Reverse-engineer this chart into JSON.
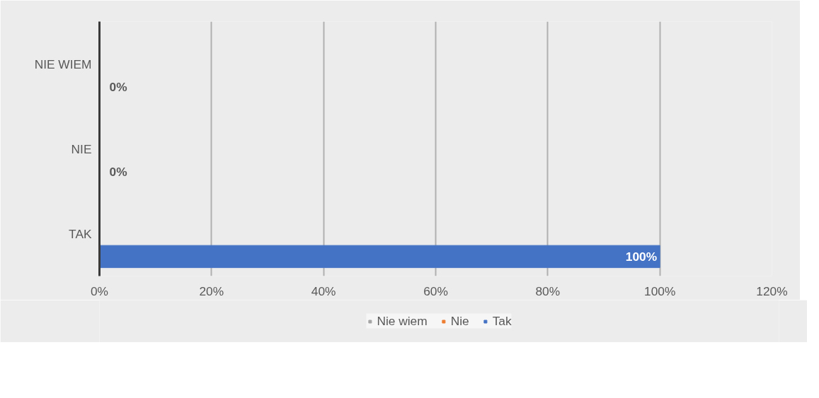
{
  "chart_data": {
    "type": "bar",
    "orientation": "horizontal",
    "categories": [
      "NIE WIEM",
      "NIE",
      "TAK"
    ],
    "series": [
      {
        "name": "Nie wiem",
        "color": "#a5a5a5",
        "values": [
          null,
          null,
          null
        ]
      },
      {
        "name": "Nie",
        "color": "#ed7d31",
        "values": [
          null,
          null,
          null
        ]
      },
      {
        "name": "Tak",
        "color": "#4472c4",
        "values": [
          0,
          0,
          100
        ],
        "value_labels": [
          "0%",
          "0%",
          "100%"
        ]
      }
    ],
    "xlim": [
      0,
      120
    ],
    "xticks": [
      {
        "value": 0,
        "label": "0%"
      },
      {
        "value": 20,
        "label": "20%"
      },
      {
        "value": 40,
        "label": "40%"
      },
      {
        "value": 60,
        "label": "60%"
      },
      {
        "value": 80,
        "label": "80%"
      },
      {
        "value": 100,
        "label": "100%"
      },
      {
        "value": 120,
        "label": "120%"
      }
    ],
    "grid": "x",
    "legend": "bottom"
  }
}
